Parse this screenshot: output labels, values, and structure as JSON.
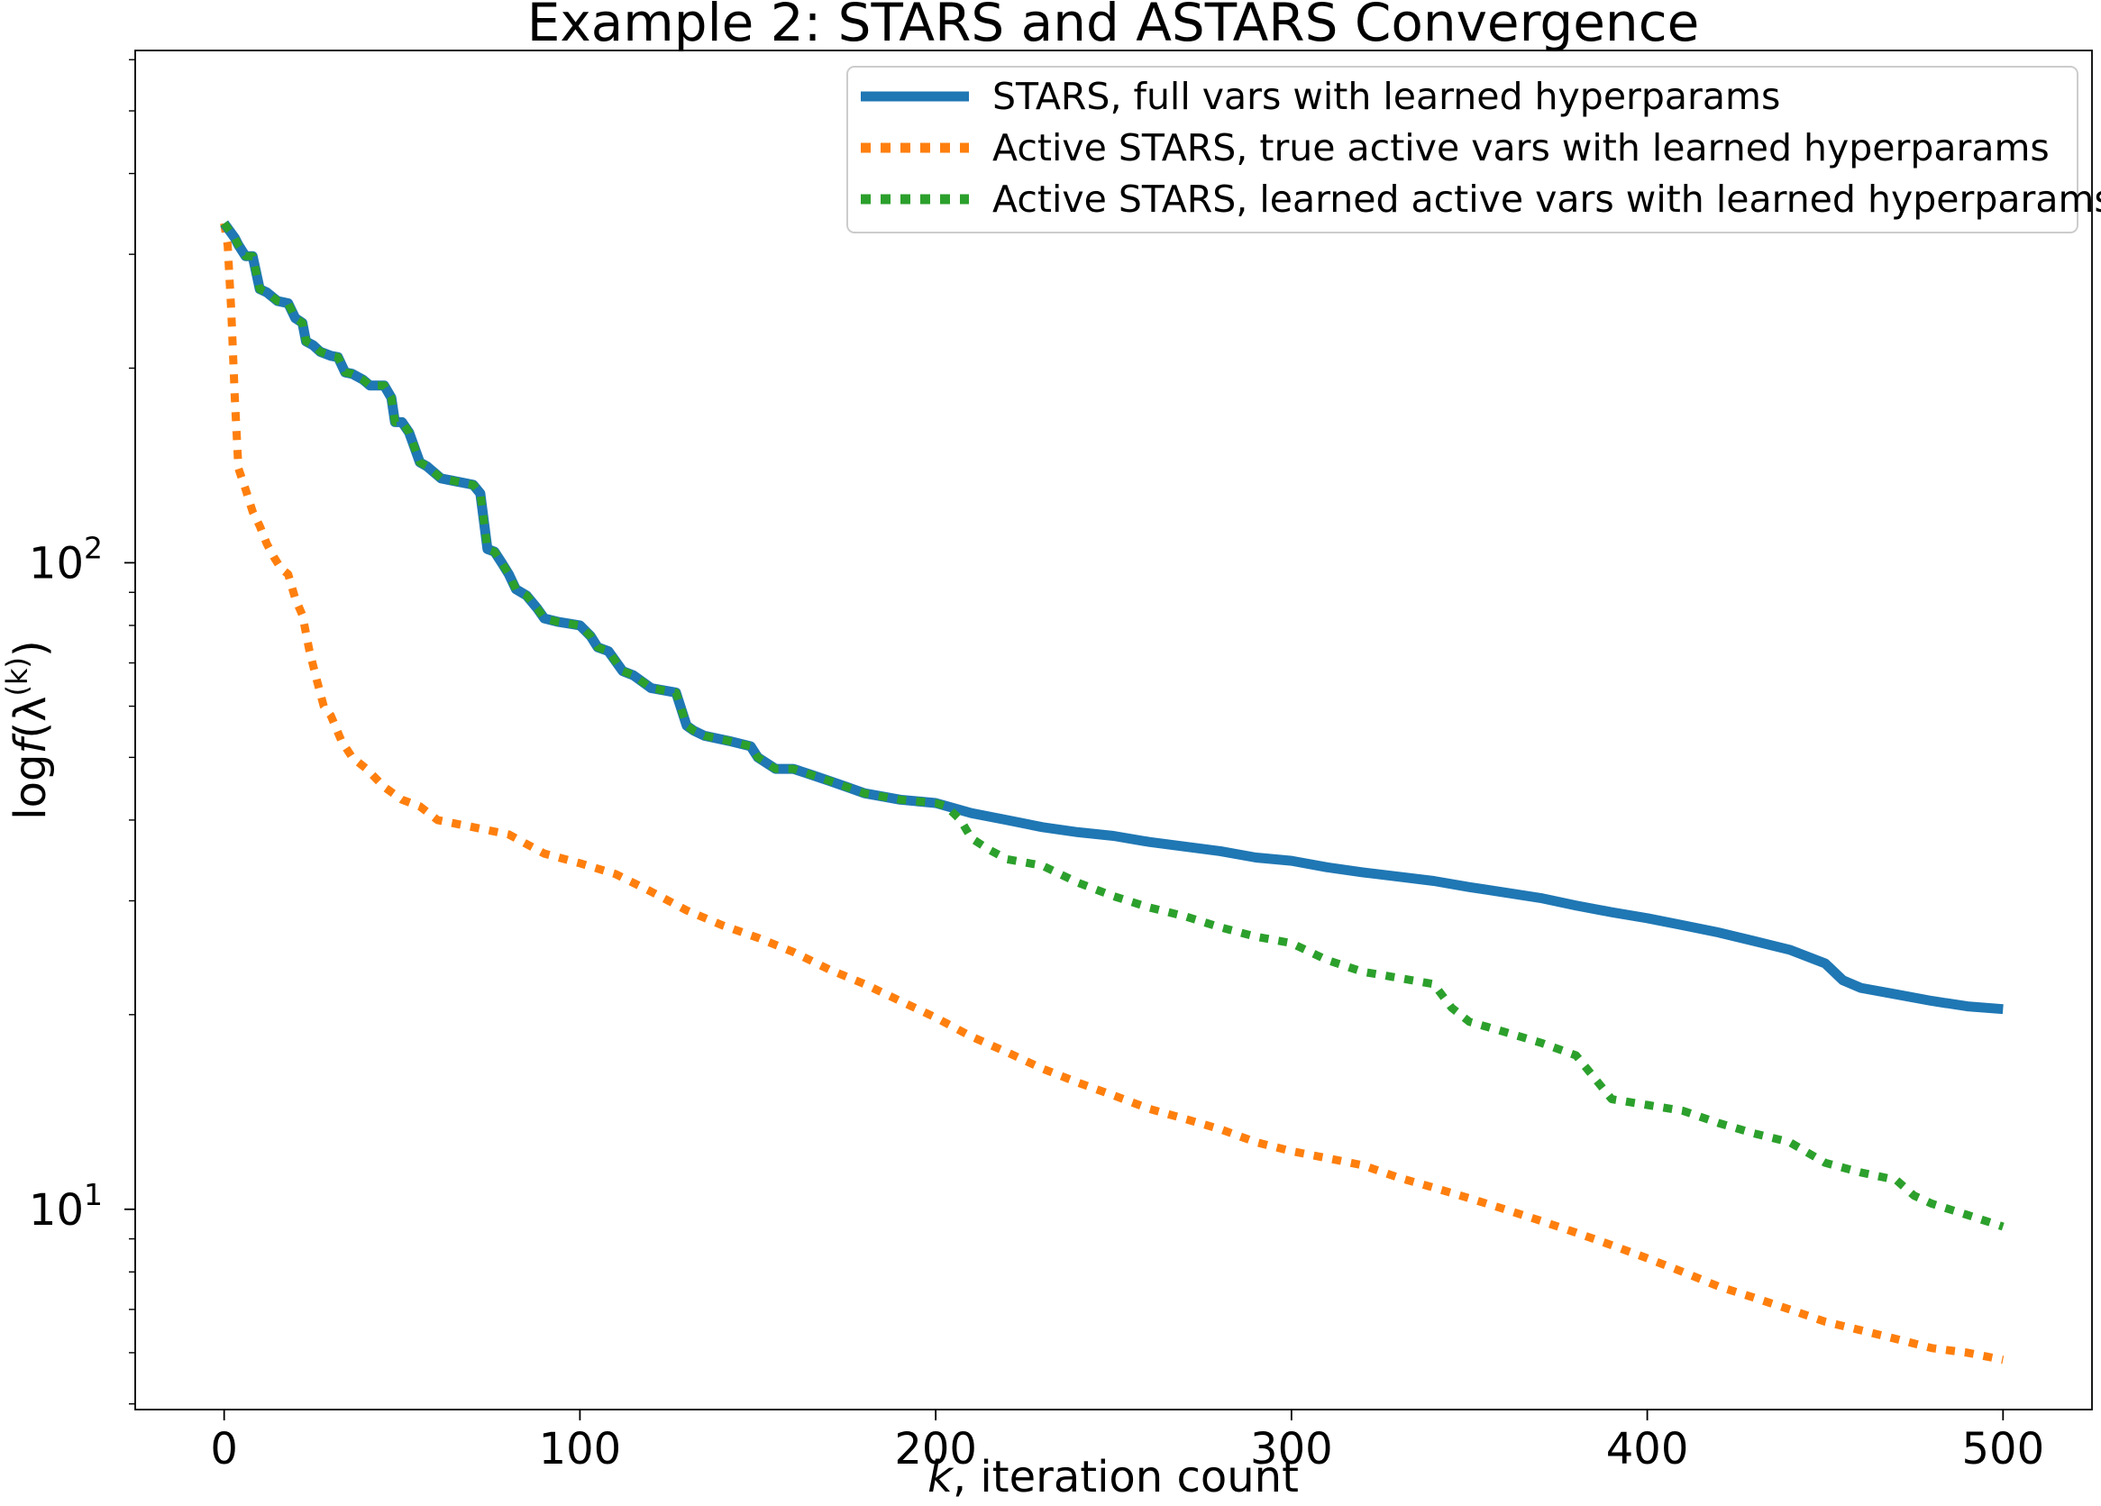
{
  "chart_data": {
    "type": "line",
    "title": "Example 2: STARS and ASTARS Convergence",
    "xlabel": {
      "italic": "k",
      "rest": ", iteration count"
    },
    "ylabel": {
      "prefix": "log",
      "func": "f",
      "open": "(λ",
      "sup": "(k)",
      "close": ")"
    },
    "xlim": [
      -25,
      525
    ],
    "ylim": [
      4.9,
      620
    ],
    "y_scale": "log",
    "xticks": [
      {
        "value": 0,
        "label": "0"
      },
      {
        "value": 100,
        "label": "100"
      },
      {
        "value": 200,
        "label": "200"
      },
      {
        "value": 300,
        "label": "300"
      },
      {
        "value": 400,
        "label": "400"
      },
      {
        "value": 500,
        "label": "500"
      }
    ],
    "yticks": [
      {
        "value": 10,
        "base": "10",
        "exp": "1"
      },
      {
        "value": 100,
        "base": "10",
        "exp": "2"
      }
    ],
    "y_minor_ticks": [
      5,
      6,
      7,
      8,
      9,
      20,
      30,
      40,
      50,
      60,
      70,
      80,
      90,
      200,
      300,
      400,
      500,
      600
    ],
    "grid": false,
    "legend_position": "top-right",
    "series": [
      {
        "name": "STARS, full vars with learned hyperparams",
        "color": "#1f77b4",
        "style": "solid",
        "points": [
          [
            0,
            335
          ],
          [
            3,
            318
          ],
          [
            4,
            310
          ],
          [
            6,
            298
          ],
          [
            8,
            298
          ],
          [
            10,
            265
          ],
          [
            12,
            262
          ],
          [
            15,
            254
          ],
          [
            18,
            252
          ],
          [
            20,
            239
          ],
          [
            22,
            235
          ],
          [
            23,
            220
          ],
          [
            25,
            217
          ],
          [
            27,
            212
          ],
          [
            30,
            209
          ],
          [
            32,
            208
          ],
          [
            34,
            197
          ],
          [
            36,
            196
          ],
          [
            39,
            192
          ],
          [
            41,
            188
          ],
          [
            45,
            188
          ],
          [
            47,
            180
          ],
          [
            48,
            165
          ],
          [
            50,
            165
          ],
          [
            52,
            159
          ],
          [
            55,
            143
          ],
          [
            57,
            141
          ],
          [
            61,
            135
          ],
          [
            64,
            134
          ],
          [
            70,
            132
          ],
          [
            72,
            128
          ],
          [
            74,
            105
          ],
          [
            76,
            104
          ],
          [
            78,
            100
          ],
          [
            80,
            96
          ],
          [
            82,
            91
          ],
          [
            85,
            89
          ],
          [
            88,
            85
          ],
          [
            90,
            82
          ],
          [
            94,
            81
          ],
          [
            100,
            80
          ],
          [
            103,
            77
          ],
          [
            105,
            74
          ],
          [
            108,
            73
          ],
          [
            112,
            68
          ],
          [
            115,
            67
          ],
          [
            120,
            64
          ],
          [
            127,
            63
          ],
          [
            130,
            56
          ],
          [
            132,
            55
          ],
          [
            135,
            54
          ],
          [
            142,
            53
          ],
          [
            148,
            52
          ],
          [
            150,
            50
          ],
          [
            155,
            48
          ],
          [
            160,
            48
          ],
          [
            165,
            47
          ],
          [
            170,
            46
          ],
          [
            175,
            45
          ],
          [
            180,
            44
          ],
          [
            190,
            43
          ],
          [
            200,
            42.5
          ],
          [
            210,
            41
          ],
          [
            220,
            40
          ],
          [
            230,
            39
          ],
          [
            240,
            38.3
          ],
          [
            250,
            37.8
          ],
          [
            260,
            37
          ],
          [
            270,
            36.4
          ],
          [
            280,
            35.8
          ],
          [
            290,
            35
          ],
          [
            300,
            34.6
          ],
          [
            310,
            33.8
          ],
          [
            320,
            33.2
          ],
          [
            330,
            32.7
          ],
          [
            340,
            32.2
          ],
          [
            350,
            31.5
          ],
          [
            360,
            30.9
          ],
          [
            370,
            30.3
          ],
          [
            380,
            29.5
          ],
          [
            390,
            28.8
          ],
          [
            400,
            28.2
          ],
          [
            410,
            27.5
          ],
          [
            420,
            26.8
          ],
          [
            430,
            26.0
          ],
          [
            440,
            25.2
          ],
          [
            450,
            24.0
          ],
          [
            455,
            22.6
          ],
          [
            460,
            22.0
          ],
          [
            470,
            21.5
          ],
          [
            480,
            21.0
          ],
          [
            490,
            20.6
          ],
          [
            500,
            20.4
          ]
        ]
      },
      {
        "name": "Active STARS, true active vars with learned hyperparams",
        "color": "#ff7f0e",
        "style": "dotted",
        "points": [
          [
            0,
            335
          ],
          [
            1,
            310
          ],
          [
            2,
            245
          ],
          [
            3,
            180
          ],
          [
            4,
            140
          ],
          [
            6,
            130
          ],
          [
            8,
            120
          ],
          [
            10,
            114
          ],
          [
            12,
            107
          ],
          [
            14,
            102
          ],
          [
            16,
            98
          ],
          [
            18,
            96
          ],
          [
            20,
            88
          ],
          [
            22,
            83
          ],
          [
            24,
            73
          ],
          [
            26,
            66
          ],
          [
            28,
            60
          ],
          [
            30,
            58
          ],
          [
            33,
            53
          ],
          [
            36,
            50
          ],
          [
            40,
            48
          ],
          [
            45,
            45
          ],
          [
            50,
            43
          ],
          [
            55,
            42
          ],
          [
            60,
            40
          ],
          [
            70,
            39
          ],
          [
            80,
            38
          ],
          [
            90,
            35.5
          ],
          [
            100,
            34.3
          ],
          [
            110,
            33.0
          ],
          [
            120,
            31.0
          ],
          [
            130,
            29.0
          ],
          [
            140,
            27.5
          ],
          [
            150,
            26.3
          ],
          [
            160,
            25.0
          ],
          [
            170,
            23.5
          ],
          [
            180,
            22.3
          ],
          [
            190,
            21.0
          ],
          [
            200,
            19.8
          ],
          [
            210,
            18.5
          ],
          [
            220,
            17.5
          ],
          [
            230,
            16.5
          ],
          [
            240,
            15.7
          ],
          [
            250,
            15.0
          ],
          [
            260,
            14.3
          ],
          [
            270,
            13.8
          ],
          [
            280,
            13.3
          ],
          [
            290,
            12.7
          ],
          [
            300,
            12.3
          ],
          [
            310,
            12.0
          ],
          [
            320,
            11.7
          ],
          [
            330,
            11.2
          ],
          [
            340,
            10.8
          ],
          [
            350,
            10.4
          ],
          [
            360,
            10.0
          ],
          [
            370,
            9.6
          ],
          [
            380,
            9.2
          ],
          [
            390,
            8.8
          ],
          [
            400,
            8.4
          ],
          [
            410,
            8.0
          ],
          [
            420,
            7.6
          ],
          [
            430,
            7.3
          ],
          [
            440,
            7.0
          ],
          [
            450,
            6.7
          ],
          [
            460,
            6.5
          ],
          [
            470,
            6.3
          ],
          [
            480,
            6.1
          ],
          [
            490,
            6.0
          ],
          [
            500,
            5.85
          ]
        ]
      },
      {
        "name": "Active STARS, learned active vars with learned hyperparams",
        "color": "#2ca02c",
        "style": "dotted",
        "points": [
          [
            0,
            335
          ],
          [
            3,
            318
          ],
          [
            4,
            310
          ],
          [
            6,
            298
          ],
          [
            8,
            298
          ],
          [
            10,
            265
          ],
          [
            12,
            262
          ],
          [
            15,
            254
          ],
          [
            18,
            252
          ],
          [
            20,
            239
          ],
          [
            22,
            235
          ],
          [
            23,
            220
          ],
          [
            25,
            217
          ],
          [
            27,
            212
          ],
          [
            30,
            209
          ],
          [
            32,
            208
          ],
          [
            34,
            197
          ],
          [
            36,
            196
          ],
          [
            39,
            192
          ],
          [
            41,
            188
          ],
          [
            45,
            188
          ],
          [
            47,
            180
          ],
          [
            48,
            165
          ],
          [
            50,
            165
          ],
          [
            52,
            159
          ],
          [
            55,
            143
          ],
          [
            57,
            141
          ],
          [
            61,
            135
          ],
          [
            64,
            134
          ],
          [
            70,
            132
          ],
          [
            72,
            128
          ],
          [
            74,
            105
          ],
          [
            76,
            104
          ],
          [
            78,
            100
          ],
          [
            80,
            96
          ],
          [
            82,
            91
          ],
          [
            85,
            89
          ],
          [
            88,
            85
          ],
          [
            90,
            82
          ],
          [
            94,
            81
          ],
          [
            100,
            80
          ],
          [
            103,
            77
          ],
          [
            105,
            74
          ],
          [
            108,
            73
          ],
          [
            112,
            68
          ],
          [
            115,
            67
          ],
          [
            120,
            64
          ],
          [
            127,
            63
          ],
          [
            130,
            56
          ],
          [
            132,
            55
          ],
          [
            135,
            54
          ],
          [
            142,
            53
          ],
          [
            148,
            52
          ],
          [
            150,
            50
          ],
          [
            155,
            48
          ],
          [
            160,
            48
          ],
          [
            165,
            47
          ],
          [
            170,
            46
          ],
          [
            175,
            45
          ],
          [
            180,
            44
          ],
          [
            190,
            43
          ],
          [
            200,
            42.5
          ],
          [
            203,
            42
          ],
          [
            207,
            40
          ],
          [
            210,
            37.5
          ],
          [
            215,
            36
          ],
          [
            220,
            34.8
          ],
          [
            230,
            34.0
          ],
          [
            240,
            32.0
          ],
          [
            250,
            30.5
          ],
          [
            260,
            29.3
          ],
          [
            270,
            28.4
          ],
          [
            280,
            27.3
          ],
          [
            290,
            26.4
          ],
          [
            300,
            25.8
          ],
          [
            310,
            24.3
          ],
          [
            320,
            23.3
          ],
          [
            330,
            22.8
          ],
          [
            340,
            22.3
          ],
          [
            345,
            20.5
          ],
          [
            350,
            19.5
          ],
          [
            360,
            18.8
          ],
          [
            370,
            18.1
          ],
          [
            380,
            17.3
          ],
          [
            385,
            16.0
          ],
          [
            390,
            14.8
          ],
          [
            400,
            14.5
          ],
          [
            410,
            14.2
          ],
          [
            420,
            13.6
          ],
          [
            430,
            13.1
          ],
          [
            440,
            12.7
          ],
          [
            450,
            11.8
          ],
          [
            460,
            11.4
          ],
          [
            470,
            11.1
          ],
          [
            475,
            10.5
          ],
          [
            480,
            10.2
          ],
          [
            490,
            9.8
          ],
          [
            500,
            9.4
          ]
        ]
      }
    ]
  }
}
